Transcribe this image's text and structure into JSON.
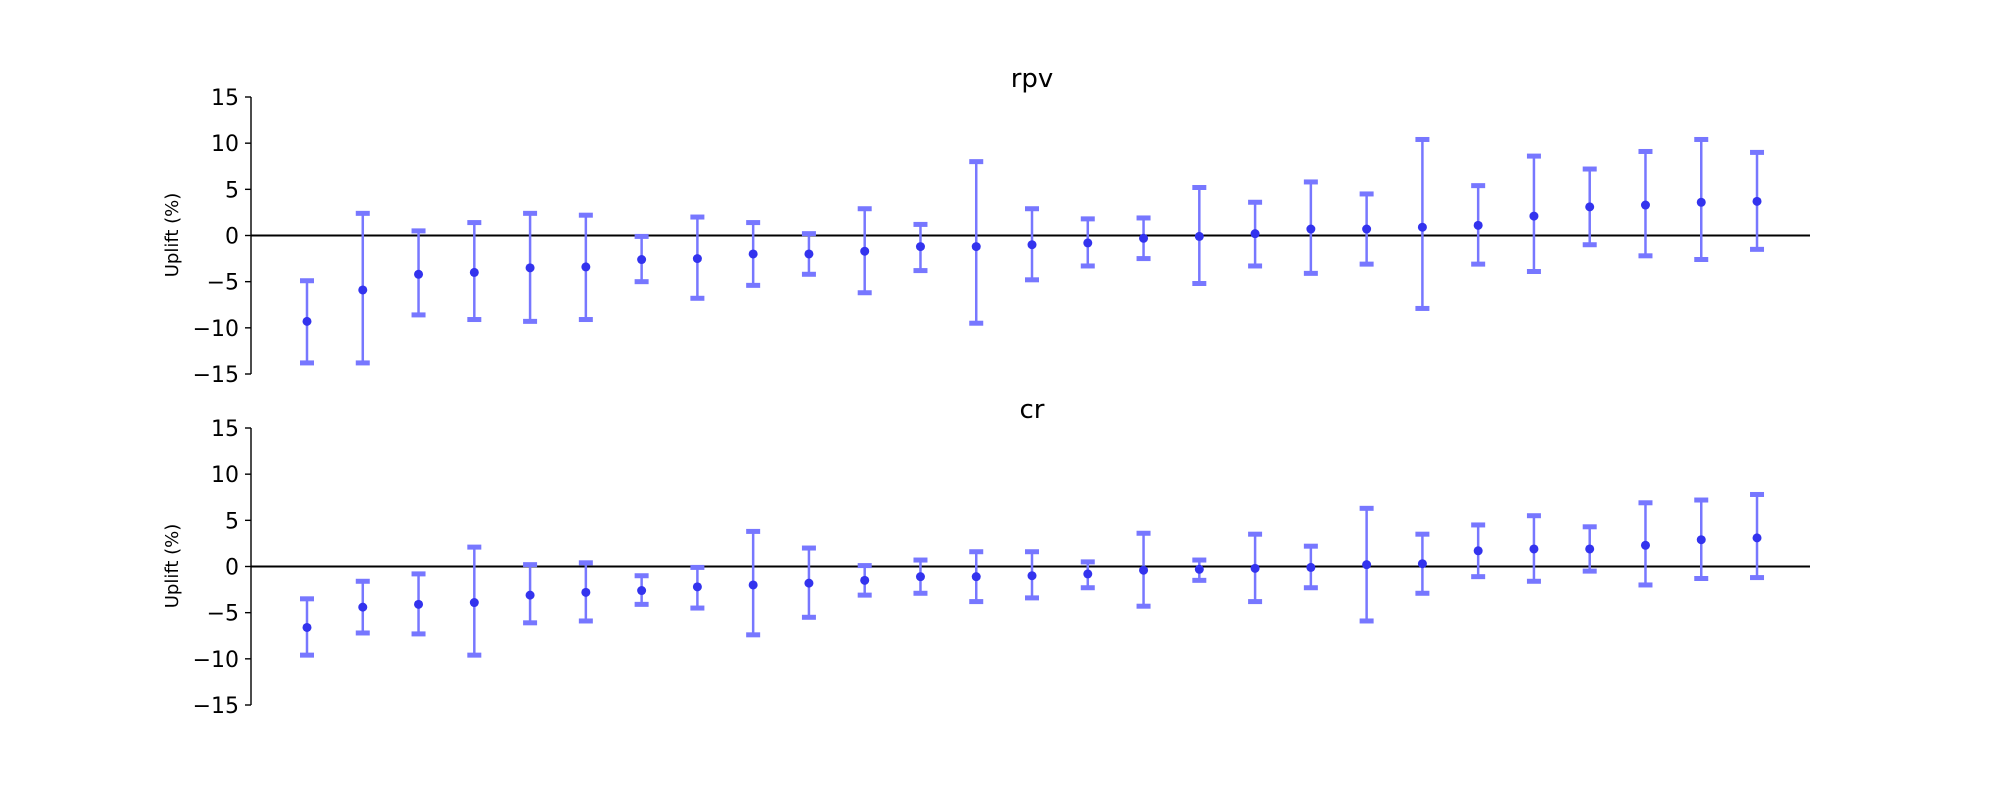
{
  "colors": {
    "marker": "#3333ee",
    "errorbar": "#7777ff",
    "baseline": "#000000",
    "axis": "#000000"
  },
  "chart_data": [
    {
      "type": "scatter",
      "title": "rpv",
      "xlabel": "",
      "ylabel": "Uplift (%)",
      "ylim": [
        -15,
        15
      ],
      "yticks": [
        15,
        10,
        5,
        0,
        -5,
        -10,
        -15
      ],
      "baseline": 0,
      "grid": false,
      "points": [
        {
          "y": -9.3,
          "lo": -13.8,
          "hi": -4.9
        },
        {
          "y": -5.9,
          "lo": -13.8,
          "hi": 2.4
        },
        {
          "y": -4.2,
          "lo": -8.6,
          "hi": 0.5
        },
        {
          "y": -4.0,
          "lo": -9.1,
          "hi": 1.4
        },
        {
          "y": -3.5,
          "lo": -9.3,
          "hi": 2.4
        },
        {
          "y": -3.4,
          "lo": -9.1,
          "hi": 2.2
        },
        {
          "y": -2.6,
          "lo": -5.0,
          "hi": -0.1
        },
        {
          "y": -2.5,
          "lo": -6.8,
          "hi": 2.0
        },
        {
          "y": -2.0,
          "lo": -5.4,
          "hi": 1.4
        },
        {
          "y": -2.0,
          "lo": -4.2,
          "hi": 0.2
        },
        {
          "y": -1.7,
          "lo": -6.2,
          "hi": 2.9
        },
        {
          "y": -1.2,
          "lo": -3.8,
          "hi": 1.2
        },
        {
          "y": -1.2,
          "lo": -9.5,
          "hi": 8.0
        },
        {
          "y": -1.0,
          "lo": -4.8,
          "hi": 2.9
        },
        {
          "y": -0.8,
          "lo": -3.3,
          "hi": 1.8
        },
        {
          "y": -0.3,
          "lo": -2.5,
          "hi": 1.9
        },
        {
          "y": -0.1,
          "lo": -5.2,
          "hi": 5.2
        },
        {
          "y": 0.2,
          "lo": -3.3,
          "hi": 3.6
        },
        {
          "y": 0.7,
          "lo": -4.1,
          "hi": 5.8
        },
        {
          "y": 0.7,
          "lo": -3.1,
          "hi": 4.5
        },
        {
          "y": 0.9,
          "lo": -7.9,
          "hi": 10.4
        },
        {
          "y": 1.1,
          "lo": -3.1,
          "hi": 5.4
        },
        {
          "y": 2.1,
          "lo": -3.9,
          "hi": 8.6
        },
        {
          "y": 3.1,
          "lo": -1.0,
          "hi": 7.2
        },
        {
          "y": 3.3,
          "lo": -2.2,
          "hi": 9.1
        },
        {
          "y": 3.6,
          "lo": -2.6,
          "hi": 10.4
        },
        {
          "y": 3.7,
          "lo": -1.5,
          "hi": 9.0
        }
      ]
    },
    {
      "type": "scatter",
      "title": "cr",
      "xlabel": "",
      "ylabel": "Uplift (%)",
      "ylim": [
        -15,
        15
      ],
      "yticks": [
        15,
        10,
        5,
        0,
        -5,
        -10,
        -15
      ],
      "baseline": 0,
      "grid": false,
      "points": [
        {
          "y": -6.6,
          "lo": -9.6,
          "hi": -3.5
        },
        {
          "y": -4.4,
          "lo": -7.2,
          "hi": -1.6
        },
        {
          "y": -4.1,
          "lo": -7.3,
          "hi": -0.8
        },
        {
          "y": -3.9,
          "lo": -9.6,
          "hi": 2.1
        },
        {
          "y": -3.1,
          "lo": -6.1,
          "hi": 0.2
        },
        {
          "y": -2.8,
          "lo": -5.9,
          "hi": 0.4
        },
        {
          "y": -2.6,
          "lo": -4.1,
          "hi": -1.0
        },
        {
          "y": -2.2,
          "lo": -4.5,
          "hi": -0.1
        },
        {
          "y": -2.0,
          "lo": -7.4,
          "hi": 3.8
        },
        {
          "y": -1.8,
          "lo": -5.5,
          "hi": 2.0
        },
        {
          "y": -1.5,
          "lo": -3.1,
          "hi": 0.1
        },
        {
          "y": -1.1,
          "lo": -2.9,
          "hi": 0.7
        },
        {
          "y": -1.1,
          "lo": -3.8,
          "hi": 1.6
        },
        {
          "y": -1.0,
          "lo": -3.4,
          "hi": 1.6
        },
        {
          "y": -0.8,
          "lo": -2.3,
          "hi": 0.5
        },
        {
          "y": -0.4,
          "lo": -4.3,
          "hi": 3.6
        },
        {
          "y": -0.3,
          "lo": -1.5,
          "hi": 0.7
        },
        {
          "y": -0.2,
          "lo": -3.8,
          "hi": 3.5
        },
        {
          "y": -0.1,
          "lo": -2.3,
          "hi": 2.2
        },
        {
          "y": 0.2,
          "lo": -5.9,
          "hi": 6.3
        },
        {
          "y": 0.3,
          "lo": -2.9,
          "hi": 3.5
        },
        {
          "y": 1.7,
          "lo": -1.1,
          "hi": 4.5
        },
        {
          "y": 1.9,
          "lo": -1.6,
          "hi": 5.5
        },
        {
          "y": 1.9,
          "lo": -0.5,
          "hi": 4.3
        },
        {
          "y": 2.3,
          "lo": -2.0,
          "hi": 6.9
        },
        {
          "y": 2.9,
          "lo": -1.3,
          "hi": 7.2
        },
        {
          "y": 3.1,
          "lo": -1.2,
          "hi": 7.8
        }
      ]
    }
  ]
}
